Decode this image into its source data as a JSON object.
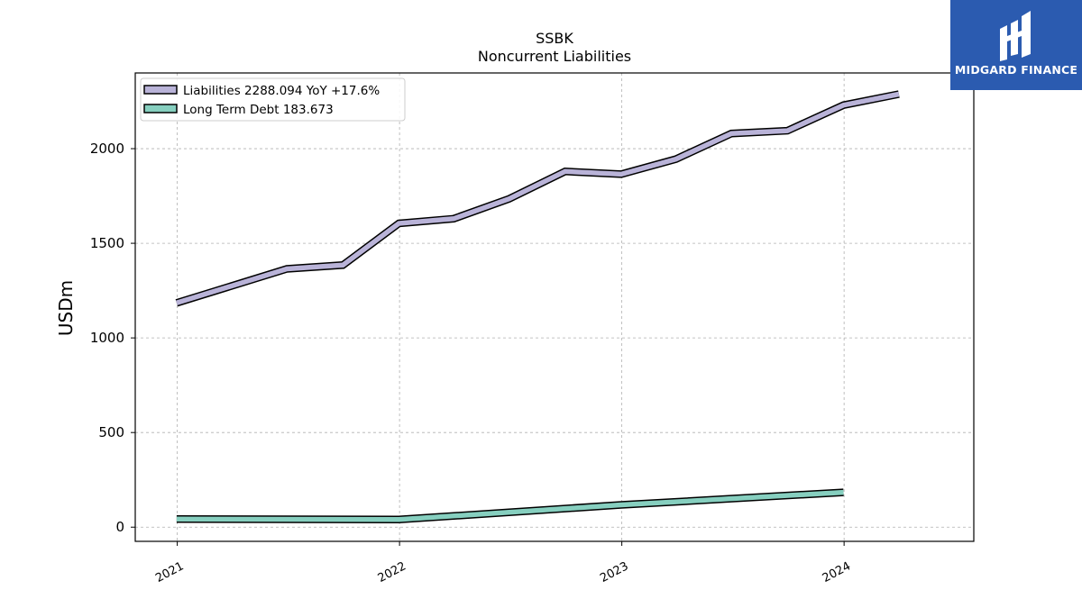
{
  "brand": {
    "name": "MIDGARD FINANCE",
    "logo_icon": "midgard-logo-icon",
    "background": "#2b5bb0"
  },
  "chart_data": {
    "type": "line",
    "title_lines": [
      "SSBK",
      "Noncurrent  Liabilities"
    ],
    "ylabel": "USDm",
    "xlabel": "",
    "x_ticks": [
      "2021",
      "2022",
      "2023",
      "2024"
    ],
    "y_ticks": [
      "0",
      "500",
      "1000",
      "1500",
      "2000"
    ],
    "ylim": [
      -75,
      2400
    ],
    "xlim": [
      "2020-10-24",
      "2024-08-01"
    ],
    "grid": true,
    "legend_position": "top-left",
    "series": [
      {
        "name": "Liabilities",
        "legend_label": "Liabilities  2288.094 YoY +17.6%",
        "color": "#b9b3d8",
        "x": [
          "2020-12-31",
          "2021-06-30",
          "2021-09-30",
          "2021-12-31",
          "2022-03-31",
          "2022-06-30",
          "2022-09-30",
          "2022-12-31",
          "2023-03-31",
          "2023-06-30",
          "2023-09-30",
          "2023-12-31",
          "2024-03-31"
        ],
        "values": [
          1185,
          1365,
          1385,
          1605,
          1630,
          1735,
          1880,
          1865,
          1945,
          2080,
          2095,
          2230,
          2288
        ]
      },
      {
        "name": "Long Term Debt",
        "legend_label": "Long Term Debt  183.673",
        "color": "#86cfbf",
        "x": [
          "2020-12-31",
          "2021-12-31",
          "2022-12-31",
          "2023-12-31"
        ],
        "values": [
          43,
          40,
          118,
          184
        ]
      }
    ]
  }
}
